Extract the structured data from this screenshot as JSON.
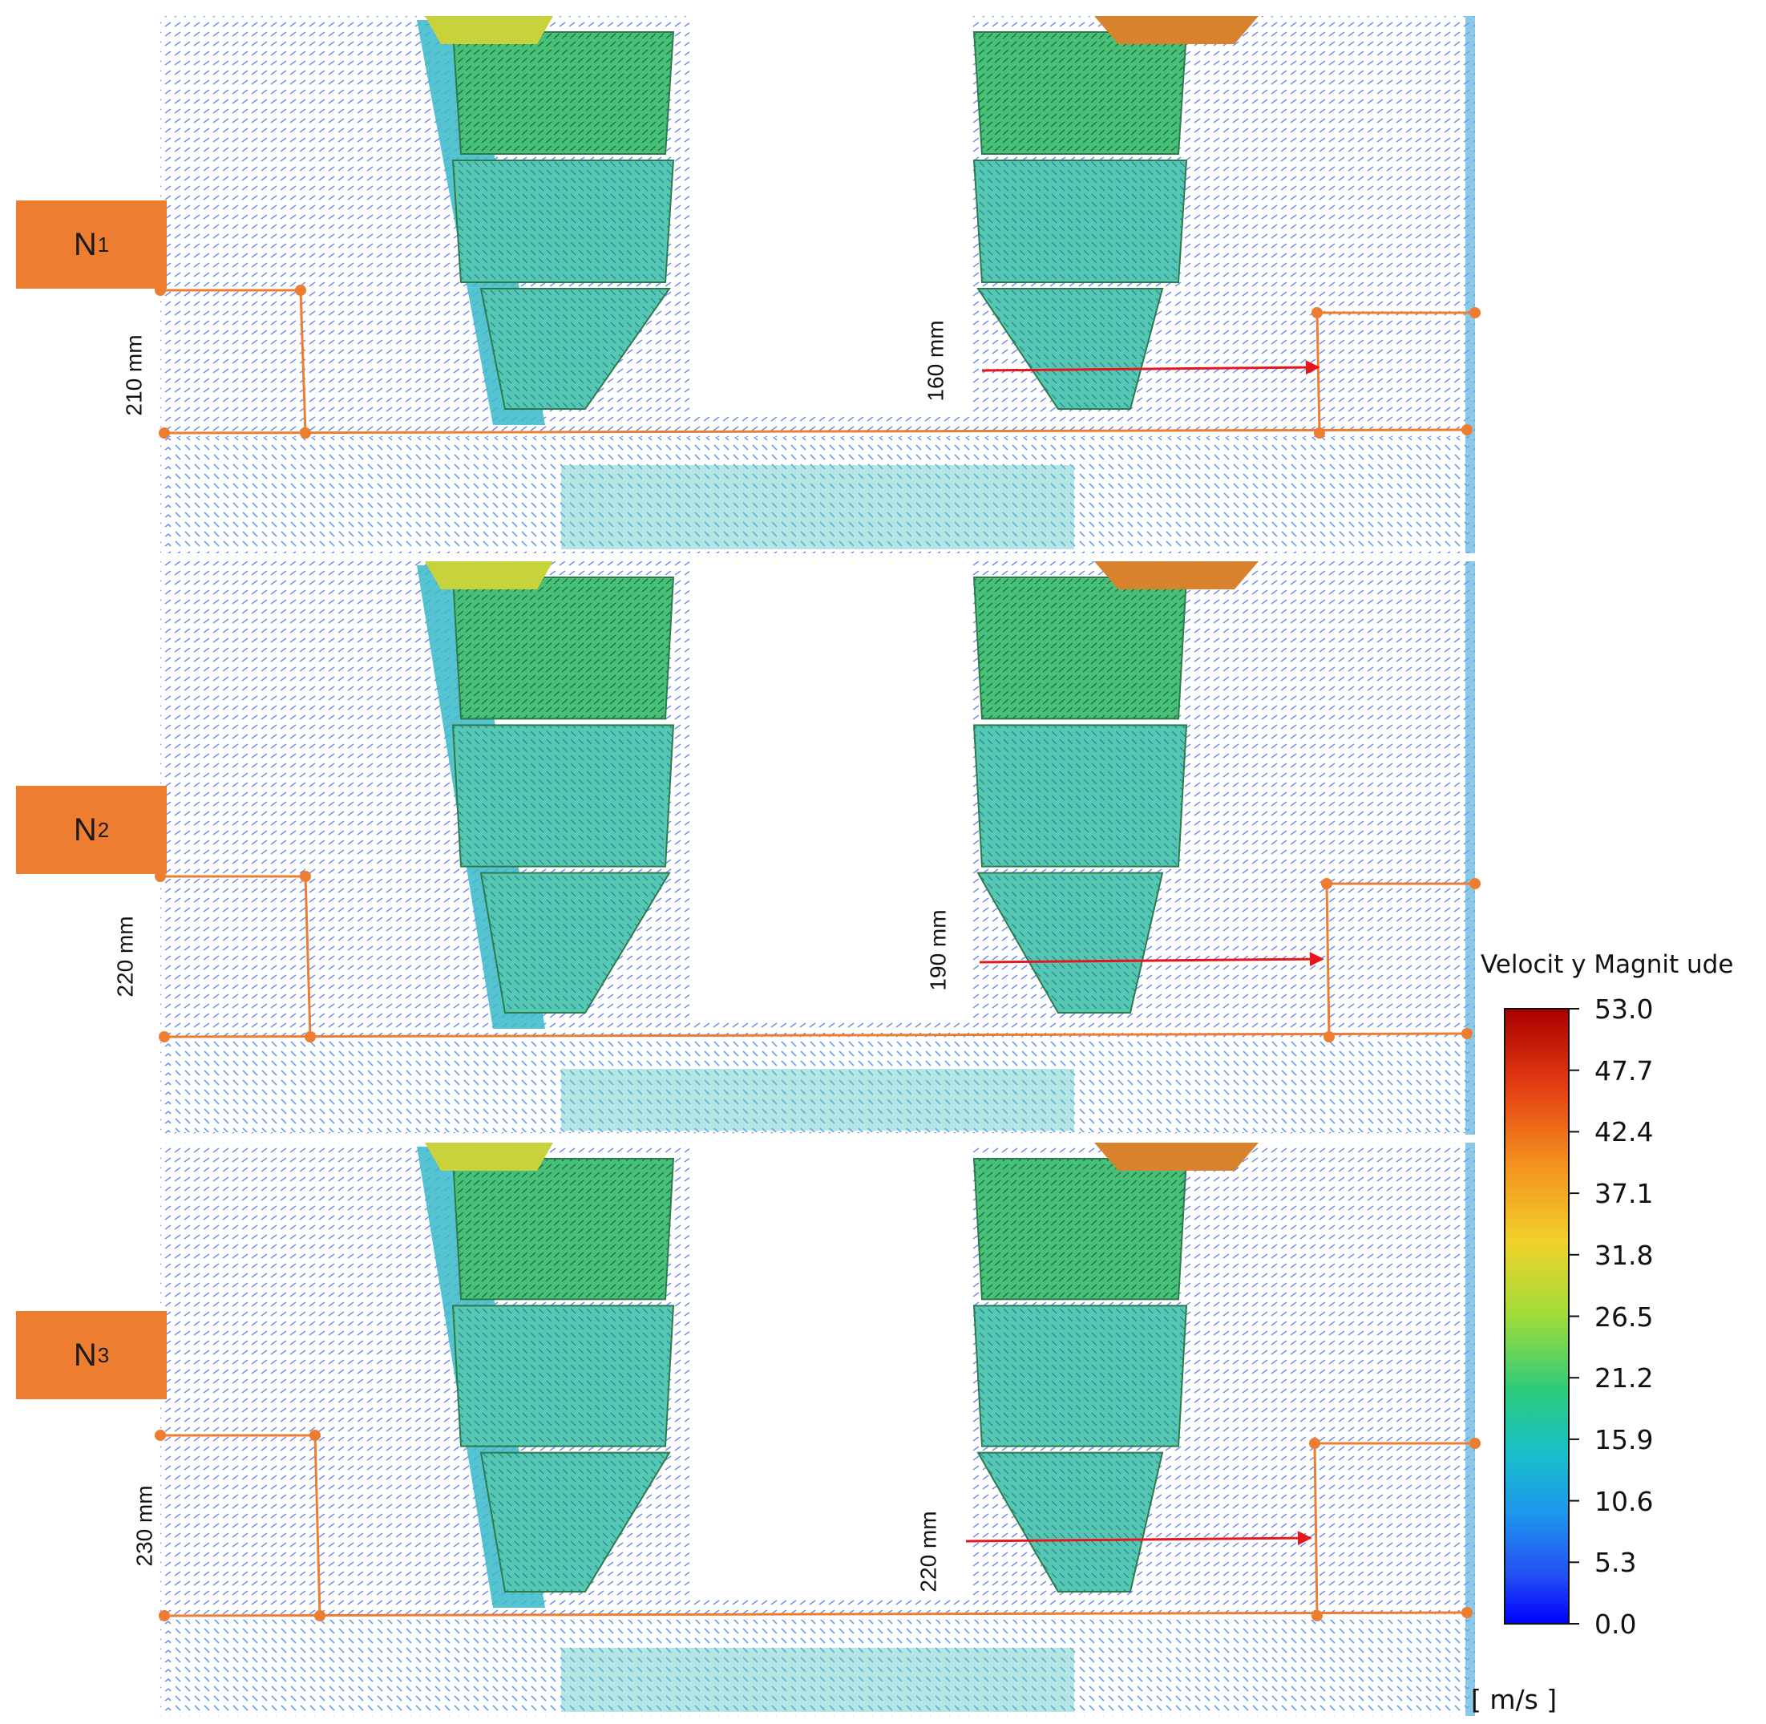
{
  "panels": [
    {
      "label_main": "N",
      "label_sub": "1",
      "left_dim": "210 mm",
      "right_dim": "160 mm"
    },
    {
      "label_main": "N",
      "label_sub": "2",
      "left_dim": "220 mm",
      "right_dim": "190 mm"
    },
    {
      "label_main": "N",
      "label_sub": "3",
      "left_dim": "230 mm",
      "right_dim": "220 mm"
    }
  ],
  "legend": {
    "title": "Velocit y Magnit ude",
    "ticks": [
      "53.0",
      "47.7",
      "42.4",
      "37.1",
      "31.8",
      "26.5",
      "21.2",
      "15.9",
      "10.6",
      "5.3",
      "0.0"
    ],
    "unit": "[ m/s ]",
    "colors": [
      "#B00000",
      "#E63C14",
      "#F58C1E",
      "#F0C828",
      "#B4DC32",
      "#5AD25A",
      "#1EC8A0",
      "#1EA0E6",
      "#2864F0",
      "#0000FF"
    ]
  },
  "annotation_colors": {
    "dimension": "#ED7D31",
    "arrow": "#E8151B"
  }
}
